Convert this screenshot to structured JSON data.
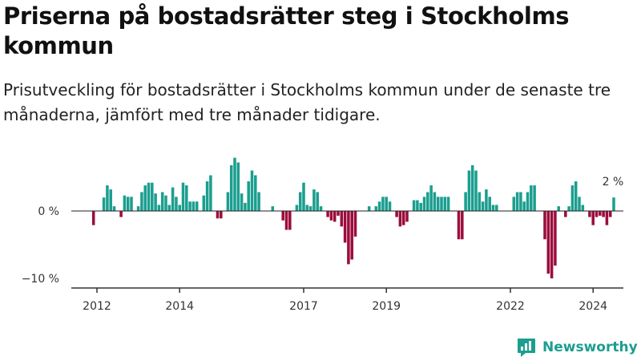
{
  "title": "Priserna på bostadsrätter steg i Stockholms kommun",
  "subtitle": "Prisutveckling för bostadsrätter i Stockholms kommun under de senaste tre månaderna, jämfört med tre månader tidigare.",
  "brand": {
    "name": "Newsworthy"
  },
  "colors": {
    "positive": "#1b9e8f",
    "negative": "#9b0d3c",
    "axis": "#333333",
    "text": "#1a1a1a"
  },
  "chart_data": {
    "type": "bar",
    "title": "Priserna på bostadsrätter steg i Stockholms kommun",
    "subtitle": "Prisutveckling för bostadsrätter i Stockholms kommun under de senaste tre månaderna, jämfört med tre månader tidigare.",
    "xlabel": "",
    "ylabel": "",
    "start": {
      "year": 2011,
      "month": 12
    },
    "unit": "%",
    "ylim": [
      -11.2,
      9
    ],
    "yticks": [
      0,
      -10
    ],
    "ytick_labels": [
      "0 %",
      "−10 %"
    ],
    "xticks": [
      2012,
      2014,
      2017,
      2019,
      2022,
      2024
    ],
    "annotation": {
      "text": "2 %"
    },
    "grid": false,
    "legend": "none",
    "values": [
      -2.1,
      0,
      0,
      2,
      3.8,
      3.2,
      0.7,
      0,
      -0.9,
      2.3,
      2.1,
      2.1,
      0,
      0.7,
      2.8,
      3.8,
      4.2,
      4.2,
      2.6,
      0.9,
      2.8,
      2.3,
      0.9,
      3.5,
      2.1,
      0.9,
      4.2,
      3.8,
      1.4,
      1.4,
      1.4,
      0,
      2.3,
      4.4,
      5.3,
      0,
      -1.1,
      -1.1,
      0,
      2.8,
      6.8,
      7.9,
      7.2,
      2.6,
      1.2,
      4.4,
      6,
      5.3,
      2.8,
      0,
      0,
      0,
      0.7,
      0,
      0,
      -1.4,
      -2.8,
      -2.8,
      0,
      0.9,
      2.8,
      4.2,
      0.9,
      0.7,
      3.2,
      2.8,
      0.7,
      0,
      -0.9,
      -1.4,
      -1.6,
      -0.7,
      -2.3,
      -4.7,
      -7.9,
      -7.2,
      -3.8,
      0,
      0,
      0,
      0.7,
      0,
      0.7,
      1.4,
      2.1,
      2.1,
      1.4,
      0,
      -0.9,
      -2.3,
      -2.1,
      -1.6,
      0,
      1.6,
      1.6,
      1.2,
      2.1,
      2.8,
      3.8,
      2.8,
      2.1,
      2.1,
      2.1,
      2.1,
      0,
      0,
      -4.2,
      -4.2,
      2.8,
      6,
      6.8,
      6,
      2.8,
      1.4,
      3.2,
      2.1,
      0.9,
      0.9,
      0,
      0,
      0,
      0,
      2.1,
      2.8,
      2.8,
      1.4,
      2.8,
      3.8,
      3.8,
      0,
      0,
      -4.2,
      -9.3,
      -10,
      -8.1,
      0.7,
      0,
      -0.9,
      0.7,
      3.8,
      4.4,
      2.1,
      0.9,
      0,
      -0.9,
      -2.1,
      -0.9,
      -0.7,
      -0.9,
      -2.1,
      -0.9,
      2
    ]
  }
}
